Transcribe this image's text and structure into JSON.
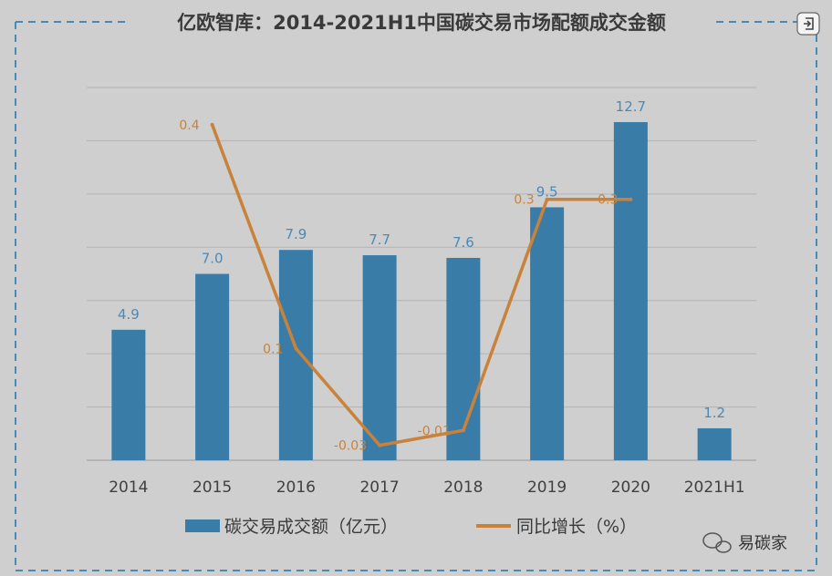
{
  "colors": {
    "background": "#cfcfcf",
    "frame": "#4a8ab8",
    "bar": "#3a7ca8",
    "line": "#c8823a",
    "grid": "#b3b3b3",
    "axis": "#999999"
  },
  "icons": {
    "corner": "exit-icon",
    "watermark": "wechat-icon"
  },
  "watermark": {
    "text": "易碳家"
  },
  "chart_data": {
    "type": "bar",
    "title": "亿欧智库：2014-2021H1中国碳交易市场配额成交金额",
    "categories": [
      "2014",
      "2015",
      "2016",
      "2017",
      "2018",
      "2019",
      "2020",
      "2021H1"
    ],
    "series": [
      {
        "name": "碳交易成交额（亿元）",
        "type": "bar",
        "values": [
          4.9,
          7.0,
          7.9,
          7.7,
          7.6,
          9.5,
          12.7,
          1.2
        ],
        "labels": [
          "4.9",
          "7.0",
          "7.9",
          "7.7",
          "7.6",
          "9.5",
          "12.7",
          "1.2"
        ]
      },
      {
        "name": "同比增长（%）",
        "type": "line",
        "values": [
          null,
          0.4,
          0.1,
          -0.03,
          -0.01,
          0.3,
          0.3,
          null
        ],
        "labels": [
          "",
          "0.4",
          "0.1",
          "-0.03",
          "-0.01",
          "0.3",
          "0.3",
          ""
        ]
      }
    ],
    "y_bar_range": [
      0,
      14
    ],
    "y_line_range": [
      -0.05,
      0.45
    ],
    "grid": true,
    "legend_position": "bottom"
  }
}
